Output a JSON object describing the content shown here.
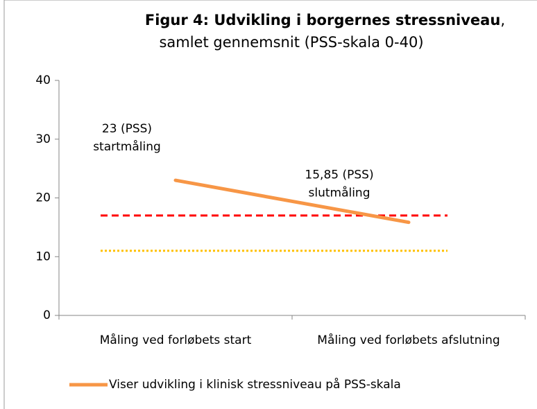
{
  "chart_data": {
    "type": "line",
    "title": "Figur 4: Udvikling i borgernes stressniveau",
    "title_punctuation": ",",
    "subtitle": "samlet gennemsnit (PSS-skala 0-40)",
    "categories": [
      "Måling ved forløbets start",
      "Måling ved forløbets afslutning"
    ],
    "series": [
      {
        "name": "Viser udvikling i klinisk stressniveau på PSS-skala",
        "color": "#f79646",
        "values": [
          23,
          15.85
        ],
        "value_labels": [
          "23 (PSS)",
          "15,85 (PSS)"
        ]
      }
    ],
    "annotations": [
      "startmåling",
      "slutmåling"
    ],
    "reference_lines": [
      {
        "value": 17,
        "color": "#ff0000",
        "style": "dashed"
      },
      {
        "value": 11,
        "color": "#ffc000",
        "style": "dotted"
      }
    ],
    "ylim": [
      0,
      40
    ],
    "yticks": [
      0,
      10,
      20,
      30,
      40
    ],
    "grid": false,
    "legend": "bottom"
  }
}
